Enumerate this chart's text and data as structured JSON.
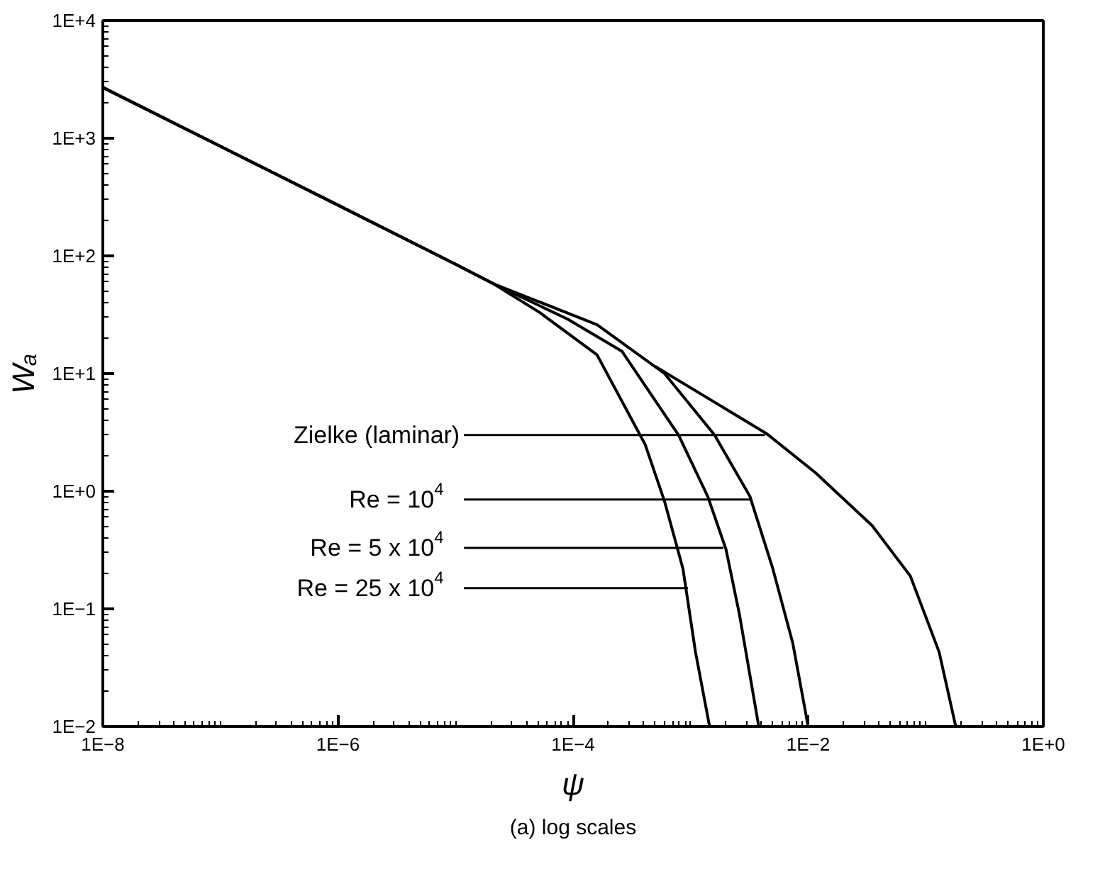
{
  "chart_data": {
    "type": "line",
    "xlabel": "ψ",
    "ylabel": "Wₐ",
    "log": "xy",
    "grid": false,
    "marker": "none",
    "line_style": "solid",
    "xlim": [
      1e-08,
      1
    ],
    "ylim": [
      0.01,
      10000
    ],
    "xticks": [
      {
        "value": 1e-08,
        "label": "1E−8"
      },
      {
        "value": 1e-06,
        "label": "1E−6"
      },
      {
        "value": 0.0001,
        "label": "1E−4"
      },
      {
        "value": 0.01,
        "label": "1E−2"
      },
      {
        "value": 1,
        "label": "1E+0"
      }
    ],
    "yticks": [
      {
        "value": 0.01,
        "label": "1E−2"
      },
      {
        "value": 0.1,
        "label": "1E−1"
      },
      {
        "value": 1,
        "label": "1E+0"
      },
      {
        "value": 10,
        "label": "1E+1"
      },
      {
        "value": 100,
        "label": "1E+2"
      },
      {
        "value": 1000,
        "label": "1E+3"
      },
      {
        "value": 10000,
        "label": "1E+4"
      }
    ],
    "series": [
      {
        "color": "#000000",
        "x": [
          1e-08,
          1e-06,
          1e-05,
          2.1e-05,
          5.2e-05,
          0.00016,
          0.00041,
          0.0006,
          0.00086,
          0.0011,
          0.00145
        ],
        "values": [
          2700,
          270,
          85,
          58,
          33,
          14.4,
          2.5,
          0.82,
          0.22,
          0.043,
          0.01
        ]
      },
      {
        "color": "#000000",
        "x": [
          1e-08,
          1e-06,
          1e-05,
          2.1e-05,
          9e-05,
          0.00026,
          0.00079,
          0.0014,
          0.002,
          0.0026,
          0.0038
        ],
        "values": [
          2700,
          270,
          85,
          58,
          29,
          15.5,
          3.0,
          0.9,
          0.32,
          0.09,
          0.01
        ]
      },
      {
        "color": "#000000",
        "x": [
          1e-08,
          1e-06,
          1e-05,
          2.1e-05,
          0.00016,
          0.0006,
          0.0016,
          0.0032,
          0.005,
          0.0074,
          0.01
        ],
        "values": [
          2700,
          270,
          85,
          58,
          26,
          10,
          3.0,
          0.9,
          0.22,
          0.051,
          0.01
        ]
      },
      {
        "color": "#000000",
        "x": [
          0.0005,
          0.0044,
          0.0115,
          0.035,
          0.074,
          0.13,
          0.18
        ],
        "values": [
          11.5,
          3.1,
          1.44,
          0.51,
          0.19,
          0.043,
          0.01
        ]
      }
    ],
    "annotations": [
      {
        "text": "Zielke (laminar)",
        "x": 0.0043,
        "y": 3.0
      },
      {
        "text": "Re = 10$^{4}$",
        "x": 0.0032,
        "y": 0.85
      },
      {
        "text": "Re = 5 x 10$^{4}$",
        "x": 0.0019,
        "y": 0.33
      },
      {
        "text": "Re = 25 x 10$^{4}$",
        "x": 0.00095,
        "y": 0.15
      },
      "(a) log scales"
    ]
  }
}
